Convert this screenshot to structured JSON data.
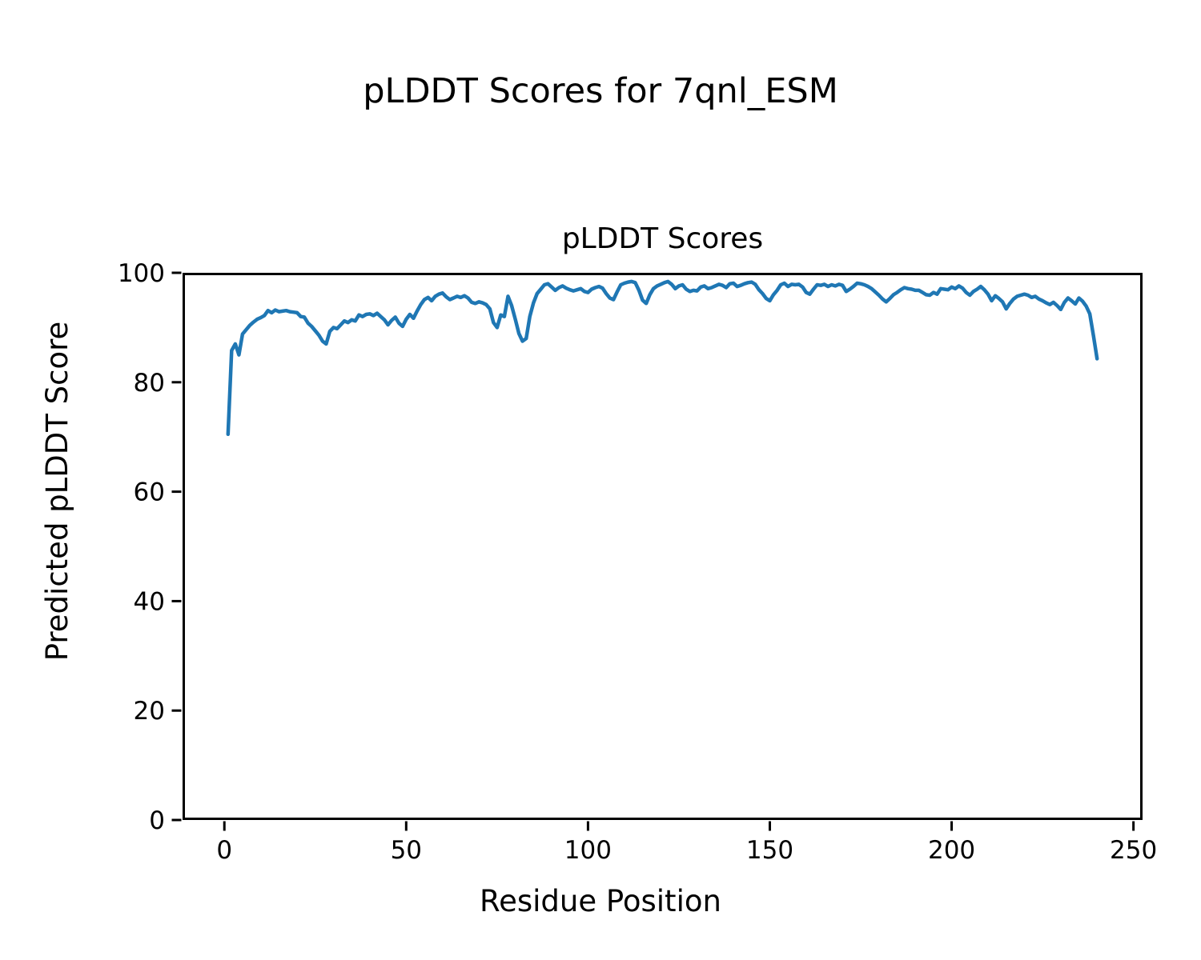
{
  "figure": {
    "suptitle": "pLDDT Scores for 7qnl_ESM",
    "axes_title": "pLDDT Scores",
    "xlabel": "Residue Position",
    "ylabel": "Predicted pLDDT Score"
  },
  "chart_data": {
    "type": "line",
    "title": "pLDDT Scores",
    "suptitle": "pLDDT Scores for 7qnl_ESM",
    "xlabel": "Residue Position",
    "ylabel": "Predicted pLDDT Score",
    "line_color": "#1f77b4",
    "line_width": 4.5,
    "spine_color": "#000000",
    "grid": false,
    "legend_position": "none",
    "xlim": [
      -11.5,
      252.5
    ],
    "ylim": [
      0,
      100
    ],
    "xticks": [
      0,
      50,
      100,
      150,
      200,
      250
    ],
    "yticks": [
      0,
      20,
      40,
      60,
      80,
      100
    ],
    "x_start": 1,
    "x_step": 1,
    "series": [
      {
        "name": "pLDDT",
        "values": [
          70.5,
          85.8,
          87.0,
          85.0,
          88.8,
          89.6,
          90.4,
          91.0,
          91.5,
          91.8,
          92.2,
          93.1,
          92.7,
          93.2,
          92.9,
          93.0,
          93.1,
          92.9,
          92.8,
          92.7,
          92.0,
          91.9,
          90.8,
          90.2,
          89.4,
          88.6,
          87.5,
          87.0,
          89.3,
          90.0,
          89.8,
          90.5,
          91.2,
          90.9,
          91.4,
          91.2,
          92.3,
          92.0,
          92.4,
          92.5,
          92.2,
          92.6,
          92.0,
          91.4,
          90.5,
          91.3,
          91.9,
          90.8,
          90.2,
          91.5,
          92.4,
          91.7,
          93.0,
          94.2,
          95.1,
          95.5,
          94.9,
          95.7,
          96.1,
          96.3,
          95.6,
          95.1,
          95.4,
          95.7,
          95.5,
          95.8,
          95.4,
          94.6,
          94.4,
          94.7,
          94.5,
          94.2,
          93.4,
          90.9,
          90.0,
          92.3,
          92.0,
          95.7,
          94.0,
          91.5,
          88.9,
          87.5,
          88.0,
          92.0,
          94.5,
          96.2,
          97.0,
          97.8,
          98.0,
          97.4,
          96.8,
          97.3,
          97.6,
          97.2,
          96.9,
          96.7,
          96.9,
          97.1,
          96.6,
          96.4,
          97.0,
          97.3,
          97.5,
          97.2,
          96.2,
          95.4,
          95.1,
          96.5,
          97.8,
          98.1,
          98.3,
          98.4,
          98.2,
          96.8,
          95.0,
          94.4,
          96.0,
          97.1,
          97.6,
          97.9,
          98.2,
          98.4,
          97.9,
          97.1,
          97.6,
          97.8,
          97.0,
          96.6,
          96.8,
          96.7,
          97.4,
          97.6,
          97.1,
          97.3,
          97.6,
          97.9,
          97.7,
          97.3,
          98.0,
          98.1,
          97.5,
          97.7,
          98.0,
          98.2,
          98.3,
          97.9,
          96.9,
          96.2,
          95.3,
          94.9,
          96.0,
          96.8,
          97.8,
          98.1,
          97.5,
          97.9,
          97.8,
          97.9,
          97.4,
          96.4,
          96.1,
          97.0,
          97.8,
          97.7,
          97.9,
          97.5,
          97.8,
          97.6,
          97.9,
          97.7,
          96.6,
          97.0,
          97.5,
          98.1,
          98.0,
          97.8,
          97.5,
          97.1,
          96.5,
          95.9,
          95.2,
          94.7,
          95.3,
          96.0,
          96.4,
          96.9,
          97.3,
          97.1,
          97.0,
          96.8,
          96.8,
          96.4,
          96.0,
          95.9,
          96.4,
          96.1,
          97.1,
          97.0,
          96.9,
          97.4,
          97.1,
          97.6,
          97.2,
          96.4,
          95.9,
          96.6,
          97.0,
          97.5,
          96.9,
          96.1,
          94.9,
          95.8,
          95.3,
          94.7,
          93.4,
          94.4,
          95.2,
          95.7,
          95.9,
          96.1,
          95.9,
          95.5,
          95.7,
          95.2,
          94.9,
          94.5,
          94.2,
          94.6,
          94.0,
          93.3,
          94.6,
          95.4,
          94.9,
          94.3,
          95.4,
          94.8,
          93.9,
          92.5,
          88.5,
          84.3
        ]
      }
    ]
  }
}
